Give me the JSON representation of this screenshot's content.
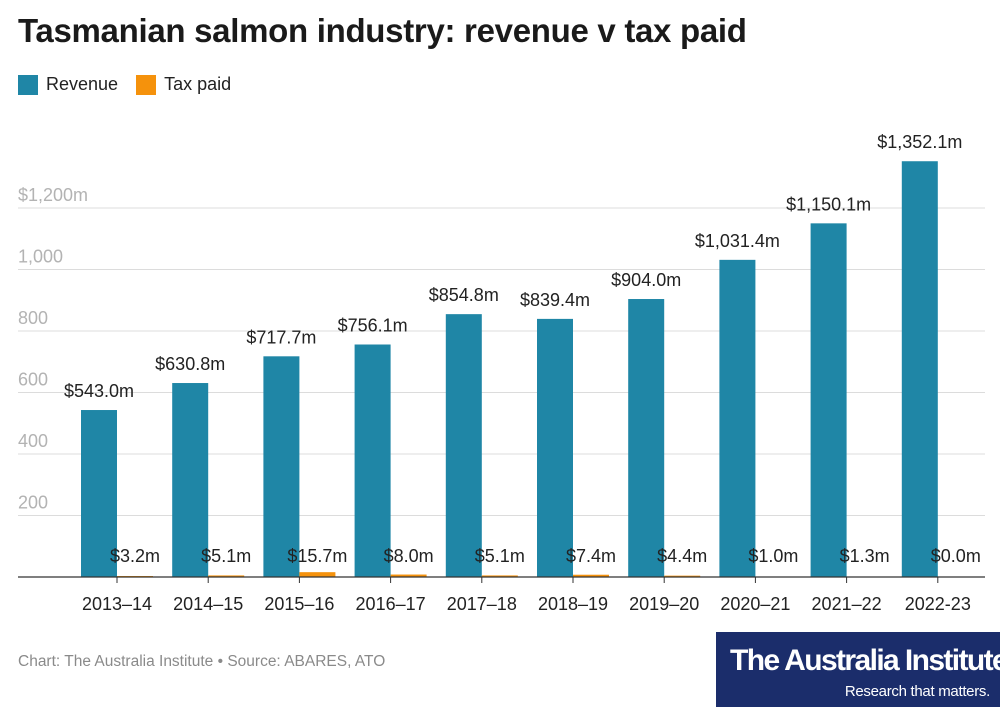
{
  "title": "Tasmanian salmon industry: revenue v tax paid",
  "footer": "Chart: The Australia Institute • Source: ABARES, ATO",
  "logo": {
    "main": "The Australia Institute",
    "tagline": "Research that matters."
  },
  "colors": {
    "revenue": "#1f86a6",
    "tax": "#f5920c",
    "grid": "#dcdcdc",
    "axis_label": "#b3b3b3",
    "logo_bg": "#1b2d6b"
  },
  "chart_data": {
    "type": "bar",
    "title": "Tasmanian salmon industry: revenue v tax paid",
    "xlabel": "",
    "ylabel": "",
    "ylim": [
      0,
      1400
    ],
    "grid": true,
    "legend_position": "top-left",
    "y_ticks": [
      {
        "value": 200,
        "label": "200"
      },
      {
        "value": 400,
        "label": "400"
      },
      {
        "value": 600,
        "label": "600"
      },
      {
        "value": 800,
        "label": "800"
      },
      {
        "value": 1000,
        "label": "1,000"
      },
      {
        "value": 1200,
        "label": "$1,200m"
      }
    ],
    "categories": [
      "2013–14",
      "2014–15",
      "2015–16",
      "2016–17",
      "2017–18",
      "2018–19",
      "2019–20",
      "2020–21",
      "2021–22",
      "2022-23"
    ],
    "series": [
      {
        "name": "Revenue",
        "color": "#1f86a6",
        "values": [
          543.0,
          630.8,
          717.7,
          756.1,
          854.8,
          839.4,
          904.0,
          1031.4,
          1150.1,
          1352.1
        ],
        "labels": [
          "$543.0m",
          "$630.8m",
          "$717.7m",
          "$756.1m",
          "$854.8m",
          "$839.4m",
          "$904.0m",
          "$1,031.4m",
          "$1,150.1m",
          "$1,352.1m"
        ]
      },
      {
        "name": "Tax paid",
        "color": "#f5920c",
        "values": [
          3.2,
          5.1,
          15.7,
          8.0,
          5.1,
          7.4,
          4.4,
          1.0,
          1.3,
          0.0
        ],
        "labels": [
          "$3.2m",
          "$5.1m",
          "$15.7m",
          "$8.0m",
          "$5.1m",
          "$7.4m",
          "$4.4m",
          "$1.0m",
          "$1.3m",
          "$0.0m"
        ]
      }
    ]
  }
}
